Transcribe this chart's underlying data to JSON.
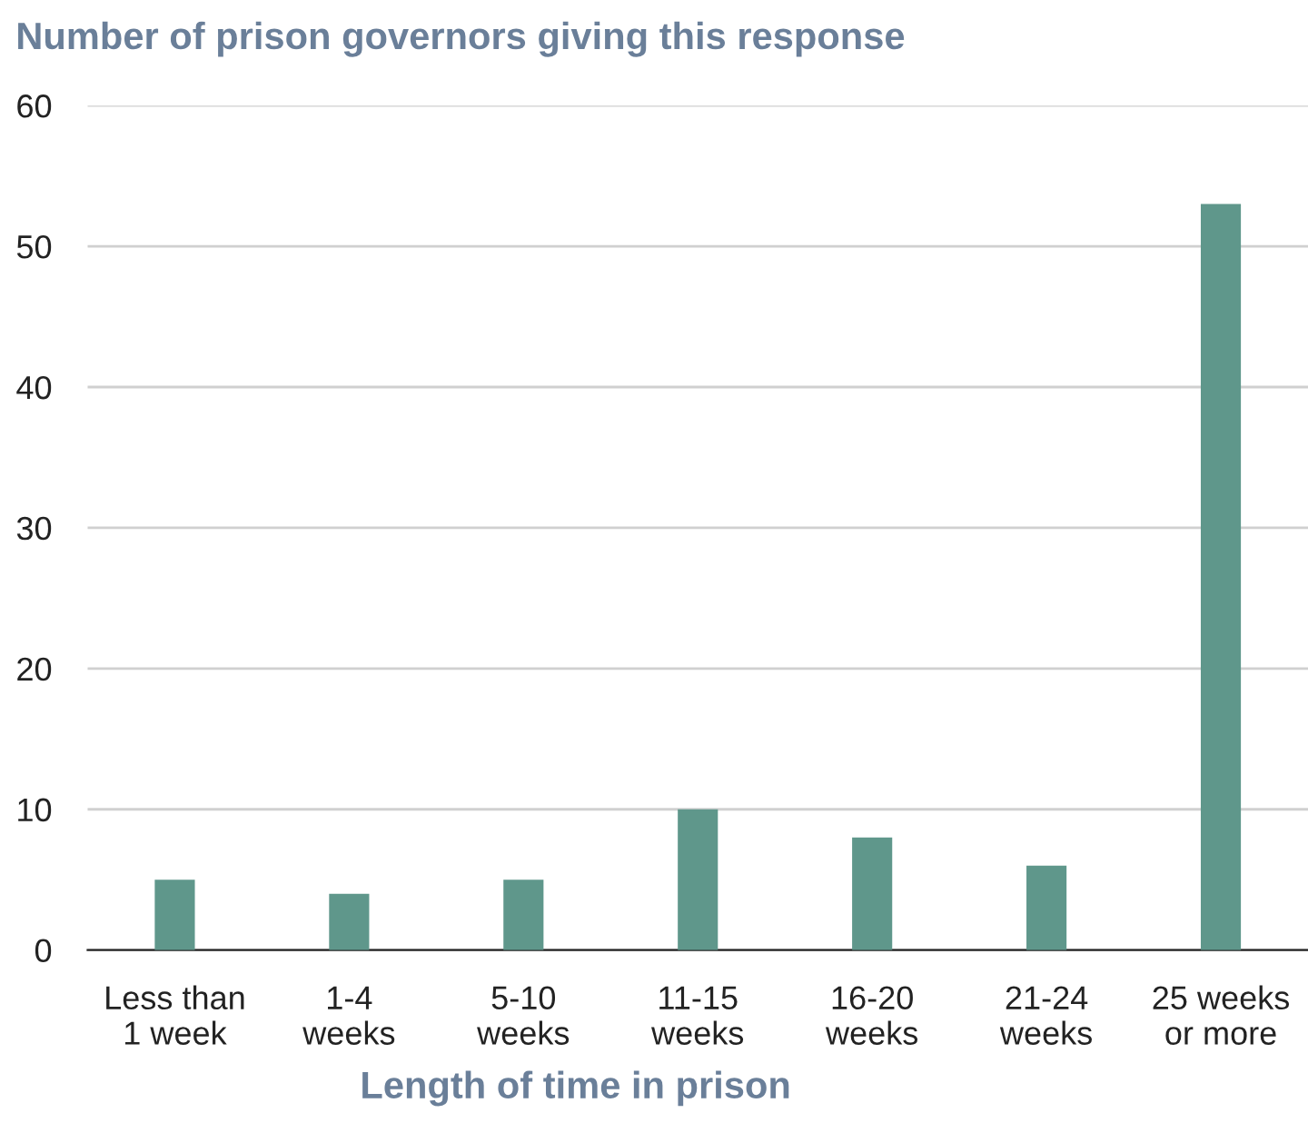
{
  "chart_data": {
    "type": "bar",
    "ylabel": "Number of prison governors giving this response",
    "xlabel": "Length of time in prison",
    "categories": [
      "Less than\n1 week",
      "1-4\nweeks",
      "5-10\nweeks",
      "11-15\nweeks",
      "16-20\nweeks",
      "21-24\nweeks",
      "25 weeks\nor more"
    ],
    "values": [
      5,
      4,
      5,
      10,
      8,
      6,
      53
    ],
    "color": "#5f978b",
    "ylim": [
      0,
      60
    ],
    "yticks": [
      0,
      10,
      20,
      30,
      40,
      50,
      60
    ],
    "grid": "y",
    "legend": false
  }
}
